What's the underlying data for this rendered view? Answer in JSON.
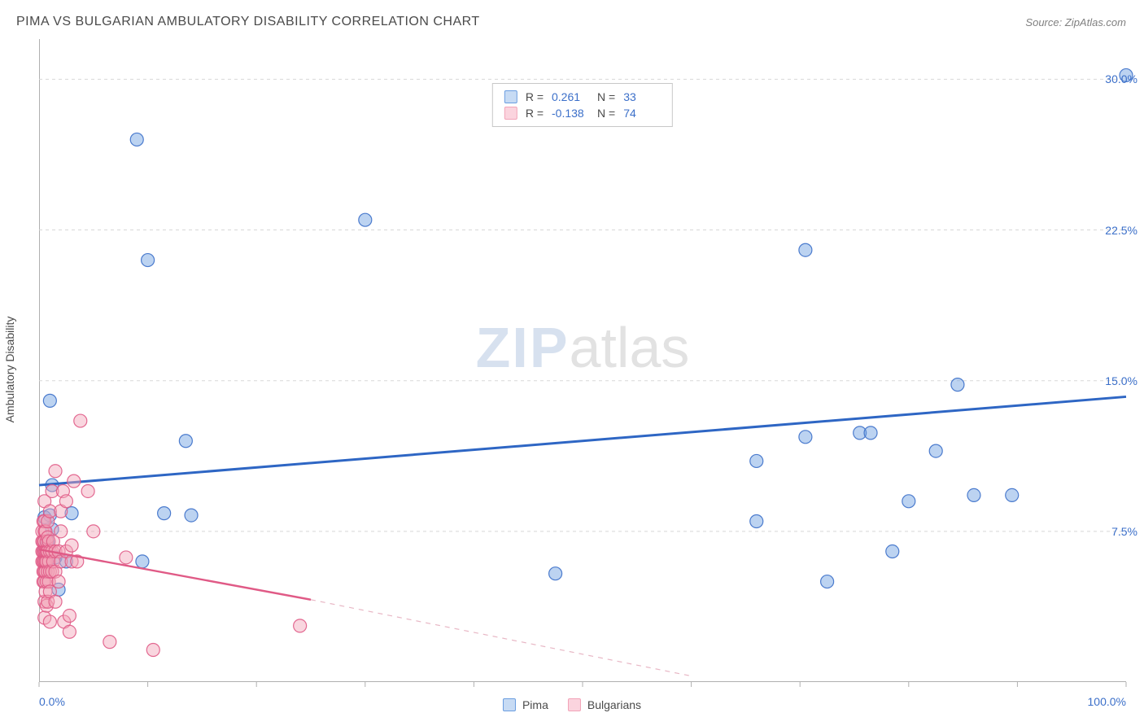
{
  "title": "PIMA VS BULGARIAN AMBULATORY DISABILITY CORRELATION CHART",
  "source_label": "Source:",
  "source_name": "ZipAtlas.com",
  "y_axis_label": "Ambulatory Disability",
  "watermark": {
    "part1": "ZIP",
    "part2": "atlas"
  },
  "chart": {
    "type": "scatter",
    "background_color": "#ffffff",
    "grid_color": "#d8d8d8",
    "axis_color": "#b0b0b0",
    "tick_label_color": "#3b6fc9",
    "xlim": [
      0,
      100
    ],
    "ylim": [
      0,
      32
    ],
    "x_tick_labels": {
      "min": "0.0%",
      "max": "100.0%"
    },
    "x_ticks_visual": [
      0,
      10,
      20,
      30,
      40,
      50,
      60,
      70,
      80,
      90,
      100
    ],
    "y_ticks": [
      {
        "value": 7.5,
        "label": "7.5%"
      },
      {
        "value": 15.0,
        "label": "15.0%"
      },
      {
        "value": 22.5,
        "label": "22.5%"
      },
      {
        "value": 30.0,
        "label": "30.0%"
      }
    ],
    "marker_radius": 8,
    "marker_fill_opacity": 0.45,
    "marker_stroke_opacity": 0.9,
    "marker_stroke_width": 1.2,
    "series": [
      {
        "name": "Pima",
        "color": "#6a9de0",
        "stroke": "#3b6fc9",
        "R": "0.261",
        "N": "33",
        "trend": {
          "x1": 0,
          "y1": 9.8,
          "x2": 100,
          "y2": 14.2,
          "color": "#2e66c4",
          "width": 3,
          "dash": ""
        },
        "points": [
          [
            0.5,
            8.2
          ],
          [
            0.5,
            6.6
          ],
          [
            0.8,
            7.0
          ],
          [
            1.0,
            14.0
          ],
          [
            1.0,
            8.3
          ],
          [
            1.2,
            9.8
          ],
          [
            1.2,
            7.6
          ],
          [
            1.5,
            6.2
          ],
          [
            1.8,
            4.6
          ],
          [
            2.5,
            6.0
          ],
          [
            3.0,
            8.4
          ],
          [
            9.0,
            27.0
          ],
          [
            9.5,
            6.0
          ],
          [
            10.0,
            21.0
          ],
          [
            11.5,
            8.4
          ],
          [
            13.5,
            12.0
          ],
          [
            14.0,
            8.3
          ],
          [
            30.0,
            23.0
          ],
          [
            47.5,
            5.4
          ],
          [
            66.0,
            11.0
          ],
          [
            66.0,
            8.0
          ],
          [
            70.5,
            21.5
          ],
          [
            70.5,
            12.2
          ],
          [
            72.5,
            5.0
          ],
          [
            75.5,
            12.4
          ],
          [
            76.5,
            12.4
          ],
          [
            78.5,
            6.5
          ],
          [
            80.0,
            9.0
          ],
          [
            82.5,
            11.5
          ],
          [
            84.5,
            14.8
          ],
          [
            86.0,
            9.3
          ],
          [
            89.5,
            9.3
          ],
          [
            100.0,
            30.2
          ]
        ]
      },
      {
        "name": "Bulgarians",
        "color": "#f2a3b8",
        "stroke": "#e05a86",
        "R": "-0.138",
        "N": "74",
        "trend_solid": {
          "x1": 0,
          "y1": 6.6,
          "x2": 25,
          "y2": 4.1,
          "color": "#e05a86",
          "width": 2.4
        },
        "trend_dashed": {
          "x1": 25,
          "y1": 4.1,
          "x2": 60,
          "y2": 0.3,
          "color": "#e8b7c5",
          "width": 1.2,
          "dash": "6 6"
        },
        "points": [
          [
            0.3,
            6.0
          ],
          [
            0.3,
            6.5
          ],
          [
            0.3,
            7.0
          ],
          [
            0.3,
            7.5
          ],
          [
            0.4,
            5.0
          ],
          [
            0.4,
            5.5
          ],
          [
            0.4,
            6.0
          ],
          [
            0.4,
            6.5
          ],
          [
            0.4,
            7.0
          ],
          [
            0.4,
            8.0
          ],
          [
            0.5,
            3.2
          ],
          [
            0.5,
            4.0
          ],
          [
            0.5,
            5.0
          ],
          [
            0.5,
            5.5
          ],
          [
            0.5,
            6.0
          ],
          [
            0.5,
            6.5
          ],
          [
            0.5,
            7.0
          ],
          [
            0.5,
            7.5
          ],
          [
            0.5,
            8.0
          ],
          [
            0.5,
            9.0
          ],
          [
            0.6,
            4.5
          ],
          [
            0.6,
            5.5
          ],
          [
            0.6,
            6.0
          ],
          [
            0.6,
            6.5
          ],
          [
            0.6,
            7.5
          ],
          [
            0.7,
            3.8
          ],
          [
            0.7,
            5.0
          ],
          [
            0.7,
            6.0
          ],
          [
            0.7,
            6.5
          ],
          [
            0.7,
            7.0
          ],
          [
            0.8,
            4.0
          ],
          [
            0.8,
            5.5
          ],
          [
            0.8,
            6.5
          ],
          [
            0.8,
            7.2
          ],
          [
            0.8,
            8.0
          ],
          [
            0.9,
            5.0
          ],
          [
            0.9,
            6.0
          ],
          [
            0.9,
            7.0
          ],
          [
            1.0,
            3.0
          ],
          [
            1.0,
            4.5
          ],
          [
            1.0,
            5.5
          ],
          [
            1.0,
            6.5
          ],
          [
            1.0,
            8.5
          ],
          [
            1.2,
            5.5
          ],
          [
            1.2,
            6.5
          ],
          [
            1.2,
            9.5
          ],
          [
            1.3,
            6.0
          ],
          [
            1.3,
            7.0
          ],
          [
            1.5,
            4.0
          ],
          [
            1.5,
            5.5
          ],
          [
            1.5,
            6.5
          ],
          [
            1.5,
            10.5
          ],
          [
            1.8,
            5.0
          ],
          [
            1.8,
            6.5
          ],
          [
            2.0,
            6.0
          ],
          [
            2.0,
            7.5
          ],
          [
            2.0,
            8.5
          ],
          [
            2.2,
            9.5
          ],
          [
            2.3,
            3.0
          ],
          [
            2.5,
            9.0
          ],
          [
            2.5,
            6.5
          ],
          [
            2.8,
            2.5
          ],
          [
            2.8,
            3.3
          ],
          [
            3.0,
            6.0
          ],
          [
            3.0,
            6.8
          ],
          [
            3.2,
            10.0
          ],
          [
            3.5,
            6.0
          ],
          [
            3.8,
            13.0
          ],
          [
            4.5,
            9.5
          ],
          [
            5.0,
            7.5
          ],
          [
            6.5,
            2.0
          ],
          [
            8.0,
            6.2
          ],
          [
            10.5,
            1.6
          ],
          [
            24.0,
            2.8
          ]
        ]
      }
    ],
    "bottom_legend": [
      {
        "label": "Pima",
        "fill": "#c7dbf4",
        "stroke": "#6a9de0"
      },
      {
        "label": "Bulgarians",
        "fill": "#fbd4de",
        "stroke": "#f2a3b8"
      }
    ],
    "stats_legend": [
      {
        "swatch_fill": "#c7dbf4",
        "swatch_stroke": "#6a9de0",
        "R_label": "R =",
        "R": "0.261",
        "N_label": "N =",
        "N": "33"
      },
      {
        "swatch_fill": "#fbd4de",
        "swatch_stroke": "#f2a3b8",
        "R_label": "R =",
        "R": "-0.138",
        "N_label": "N =",
        "N": "74"
      }
    ]
  }
}
